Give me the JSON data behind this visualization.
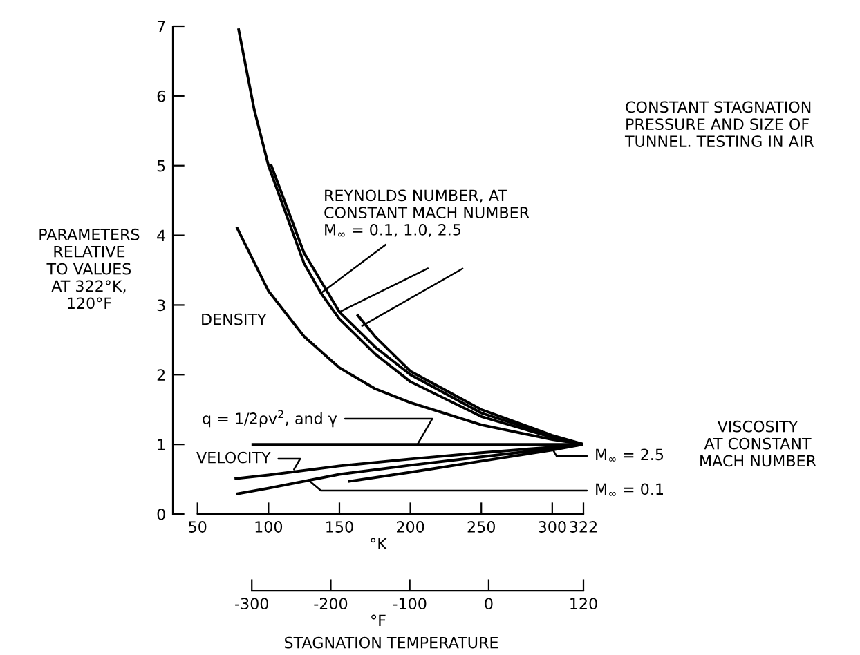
{
  "chart_data": {
    "type": "line",
    "xlabel": "°K",
    "x2label": "°F",
    "ylabel": "PARAMETERS\nRELATIVE\nTO VALUES\nAT 322°K,\n120°F",
    "xlim": [
      32.6,
      322
    ],
    "xticks": [
      50,
      100,
      150,
      200,
      250,
      300,
      322
    ],
    "x2lim": [
      -400,
      120
    ],
    "x2ticks": [
      -300,
      -200,
      -100,
      0,
      120
    ],
    "ylim": [
      0,
      7
    ],
    "yticks": [
      0,
      1,
      2,
      3,
      4,
      5,
      6,
      7
    ],
    "grid": false,
    "marker": "none",
    "line_style": "solid",
    "series": [
      {
        "color": "#000000",
        "x": [
          78,
          100,
          125,
          150,
          175,
          200,
          250,
          300,
          322
        ],
        "values": [
          4.1,
          3.2,
          2.55,
          2.1,
          1.8,
          1.6,
          1.28,
          1.07,
          1.0
        ]
      },
      {
        "color": "#000000",
        "x": [
          79,
          90,
          100,
          125,
          137,
          150,
          175,
          200,
          250,
          300,
          322
        ],
        "values": [
          6.95,
          5.8,
          5.0,
          3.6,
          3.17,
          2.8,
          2.3,
          1.9,
          1.4,
          1.1,
          1.0
        ]
      },
      {
        "color": "#000000",
        "x": [
          102,
          125,
          150,
          175,
          200,
          250,
          300,
          322
        ],
        "values": [
          5.0,
          3.75,
          2.9,
          2.4,
          2.0,
          1.45,
          1.12,
          1.0
        ]
      },
      {
        "color": "#000000",
        "x": [
          163,
          175,
          200,
          250,
          300,
          322
        ],
        "values": [
          2.85,
          2.55,
          2.05,
          1.5,
          1.13,
          1.0
        ]
      },
      {
        "color": "#000000",
        "x": [
          89,
          322
        ],
        "values": [
          1.0,
          1.0
        ]
      },
      {
        "color": "#000000",
        "x": [
          77,
          100,
          150,
          200,
          250,
          300,
          322
        ],
        "values": [
          0.51,
          0.56,
          0.69,
          0.79,
          0.88,
          0.96,
          1.0
        ]
      },
      {
        "color": "#000000",
        "x": [
          78,
          100,
          150,
          200,
          250,
          300,
          322
        ],
        "values": [
          0.29,
          0.37,
          0.57,
          0.7,
          0.82,
          0.94,
          1.0
        ]
      },
      {
        "color": "#000000",
        "x": [
          157,
          200,
          250,
          300,
          322
        ],
        "values": [
          0.47,
          0.6,
          0.76,
          0.92,
          1.0
        ]
      }
    ],
    "annotations": [
      "CONSTANT STAGNATION\nPRESSURE AND SIZE OF\nTUNNEL. TESTING IN AIR",
      {
        "text": "REYNOLDS NUMBER, AT\nCONSTANT MACH NUMBER\nM$_{∞}$ = 0.1, 1.0, 2.5",
        "x": 137,
        "y": 3.17
      },
      "DENSITY",
      {
        "text": "q = 1/2ρv$^{2}$, and γ",
        "x": 205,
        "y": 1.0
      },
      {
        "text": "VELOCITY",
        "x": 118,
        "y": 0.64
      },
      {
        "text": "M$_{∞}$ = 2.5",
        "x": 300,
        "y": 0.94
      },
      {
        "text": "M$_{∞}$ = 0.1",
        "x": 128,
        "y": 0.49
      },
      "VISCOSITY\nAT CONSTANT\nMACH NUMBER",
      "STAGNATION TEMPERATURE"
    ]
  }
}
